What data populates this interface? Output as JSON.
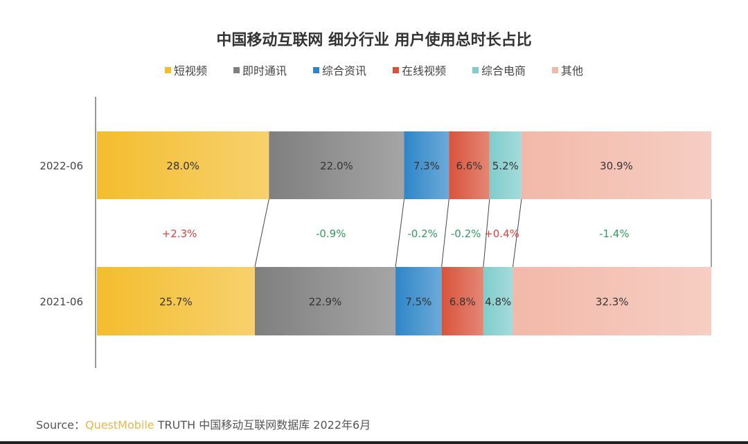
{
  "chart_data": {
    "type": "bar",
    "orientation": "horizontal",
    "stacked": true,
    "percent": true,
    "title": "中国移动互联网 细分行业 用户使用总时长占比",
    "categories": [
      "2022-06",
      "2021-06"
    ],
    "legend_position": "top",
    "series": [
      {
        "name": "短视频",
        "color": "#f3bd2e",
        "values": [
          28.0,
          25.7
        ],
        "labels": [
          "28.0%",
          "25.7%"
        ]
      },
      {
        "name": "即时通讯",
        "color": "#7f7f7f",
        "values": [
          22.0,
          22.9
        ],
        "labels": [
          "22.0%",
          "22.9%"
        ]
      },
      {
        "name": "综合资讯",
        "color": "#2e86c8",
        "values": [
          7.3,
          7.5
        ],
        "labels": [
          "7.3%",
          "7.5%"
        ]
      },
      {
        "name": "在线视频",
        "color": "#d9533b",
        "values": [
          6.6,
          6.8
        ],
        "labels": [
          "6.6%",
          "6.8%"
        ]
      },
      {
        "name": "综合电商",
        "color": "#80cccc",
        "values": [
          5.2,
          4.8
        ],
        "labels": [
          "5.2%",
          "4.8%"
        ]
      },
      {
        "name": "其他",
        "color": "#f2b9a9",
        "values": [
          30.9,
          32.3
        ],
        "labels": [
          "30.9%",
          "32.3%"
        ]
      }
    ],
    "changes": [
      "+2.3%",
      "-0.9%",
      "-0.2%",
      "-0.2%",
      "+0.4%",
      "-1.4%"
    ],
    "change_colors": {
      "increase": "#e0403a",
      "decrease": "#2e9e5a"
    },
    "grid": false
  },
  "source": {
    "prefix": "Source：",
    "brand": "QuestMobile",
    "text": " TRUTH 中国移动互联网数据库 2022年6月"
  }
}
